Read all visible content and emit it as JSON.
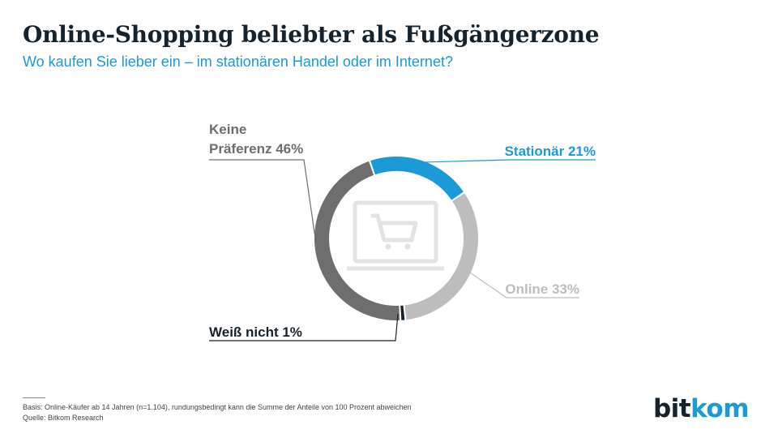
{
  "header": {
    "title": "Online-Shopping beliebter als Fußgängerzone",
    "subtitle": "Wo kaufen Sie lieber ein – im stationären Handel oder im Internet?"
  },
  "chart_data": {
    "type": "pie",
    "title": "Online-Shopping beliebter als Fußgängerzone",
    "subtitle": "Wo kaufen Sie lieber ein – im stationären Handel oder im Internet?",
    "unit": "%",
    "slices": [
      {
        "label": "Stationär 21%",
        "value": 21,
        "color": "#1a9ad6"
      },
      {
        "label": "Online 33%",
        "value": 33,
        "color": "#bdbdbd"
      },
      {
        "label": "Weiß nicht 1%",
        "value": 1,
        "color": "#14232e"
      },
      {
        "label_lines": [
          "Keine",
          "Präferenz 46%"
        ],
        "value": 46,
        "color": "#6e6e6e"
      }
    ],
    "center_icon": "shopping-cart-laptop-icon"
  },
  "footer": {
    "basis": "Basis: Online-Käufer ab 14 Jahren (n=1.104), rundungsbedingt kann die Summe der Anteile von 100 Prozent abweichen",
    "source": "Quelle: Bitkom Research"
  },
  "logo": {
    "part1": "bit",
    "part2": "kom"
  }
}
